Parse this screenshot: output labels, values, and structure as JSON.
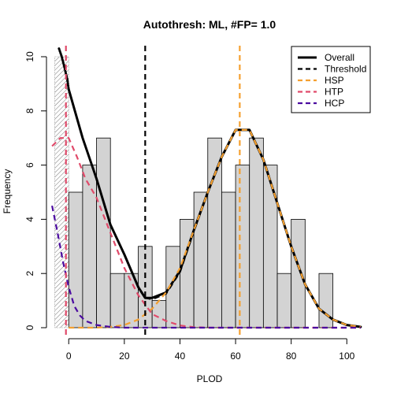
{
  "chart_data": {
    "type": "histogram",
    "title": "Autothresh: ML, #FP=  1.0",
    "xlabel": "PLOD",
    "ylabel": "Frequency",
    "xlim": [
      -8,
      107
    ],
    "ylim": [
      0,
      10.4
    ],
    "x_ticks": [
      0,
      20,
      40,
      60,
      80,
      100
    ],
    "y_ticks": [
      0,
      2,
      4,
      6,
      8,
      10
    ],
    "x_tick_labels": [
      "0",
      "20",
      "40",
      "60",
      "80",
      "100"
    ],
    "y_tick_labels": [
      "0",
      "2",
      "4",
      "6",
      "8",
      "10"
    ],
    "grid": false,
    "hatched_bin": {
      "x0": -5,
      "x1": 0,
      "height": 10
    },
    "bins": [
      {
        "x0": 0,
        "x1": 5,
        "count": 5
      },
      {
        "x0": 5,
        "x1": 10,
        "count": 6
      },
      {
        "x0": 10,
        "x1": 15,
        "count": 7
      },
      {
        "x0": 15,
        "x1": 20,
        "count": 2
      },
      {
        "x0": 20,
        "x1": 25,
        "count": 2
      },
      {
        "x0": 25,
        "x1": 30,
        "count": 3
      },
      {
        "x0": 30,
        "x1": 35,
        "count": 1
      },
      {
        "x0": 35,
        "x1": 40,
        "count": 3
      },
      {
        "x0": 40,
        "x1": 45,
        "count": 4
      },
      {
        "x0": 45,
        "x1": 50,
        "count": 5
      },
      {
        "x0": 50,
        "x1": 55,
        "count": 7
      },
      {
        "x0": 55,
        "x1": 60,
        "count": 5
      },
      {
        "x0": 60,
        "x1": 65,
        "count": 6
      },
      {
        "x0": 65,
        "x1": 70,
        "count": 7
      },
      {
        "x0": 70,
        "x1": 75,
        "count": 6
      },
      {
        "x0": 75,
        "x1": 80,
        "count": 2
      },
      {
        "x0": 80,
        "x1": 85,
        "count": 4
      },
      {
        "x0": 85,
        "x1": 90,
        "count": 0
      },
      {
        "x0": 90,
        "x1": 95,
        "count": 2
      }
    ],
    "vlines": [
      {
        "name": "Threshold",
        "x": 27.5,
        "color": "#000000"
      },
      {
        "name": "HSP",
        "x": 61.5,
        "color": "#f5a030"
      },
      {
        "name": "HTP",
        "x": -1,
        "color": "#e04a6a"
      }
    ],
    "series": [
      {
        "name": "Overall",
        "color": "#000000",
        "style": "solid",
        "points": [
          [
            0,
            8.8
          ],
          [
            5,
            7.0
          ],
          [
            10,
            5.5
          ],
          [
            15,
            3.8
          ],
          [
            20,
            2.7
          ],
          [
            25,
            1.5
          ],
          [
            27.5,
            1.1
          ],
          [
            30,
            1.1
          ],
          [
            35,
            1.3
          ],
          [
            40,
            2.1
          ],
          [
            45,
            3.6
          ],
          [
            50,
            5.0
          ],
          [
            55,
            6.3
          ],
          [
            60,
            7.3
          ],
          [
            65,
            7.3
          ],
          [
            70,
            6.2
          ],
          [
            75,
            4.6
          ],
          [
            80,
            3.0
          ],
          [
            85,
            1.6
          ],
          [
            90,
            0.7
          ],
          [
            95,
            0.3
          ],
          [
            100,
            0.1
          ],
          [
            105,
            0.03
          ]
        ]
      },
      {
        "name": "Threshold",
        "color": "#000000",
        "style": "dashed",
        "points": [
          [
            27.5,
            1.1
          ],
          [
            30,
            1.05
          ],
          [
            35,
            1.25
          ],
          [
            40,
            2.05
          ],
          [
            45,
            3.55
          ],
          [
            50,
            5.0
          ],
          [
            55,
            6.3
          ],
          [
            60,
            7.3
          ],
          [
            65,
            7.3
          ],
          [
            70,
            6.2
          ],
          [
            75,
            4.6
          ],
          [
            80,
            3.0
          ],
          [
            85,
            1.6
          ],
          [
            90,
            0.7
          ],
          [
            95,
            0.3
          ],
          [
            100,
            0.1
          ],
          [
            105,
            0.03
          ]
        ]
      },
      {
        "name": "HSP",
        "color": "#f5a030",
        "style": "dashed",
        "points": [
          [
            0,
            0.0
          ],
          [
            10,
            0.0
          ],
          [
            15,
            0.03
          ],
          [
            20,
            0.1
          ],
          [
            25,
            0.3
          ],
          [
            30,
            0.7
          ],
          [
            35,
            1.3
          ],
          [
            40,
            2.2
          ],
          [
            45,
            3.6
          ],
          [
            50,
            5.0
          ],
          [
            55,
            6.3
          ],
          [
            60,
            7.3
          ],
          [
            65,
            7.3
          ],
          [
            70,
            6.2
          ],
          [
            75,
            4.6
          ],
          [
            80,
            3.0
          ],
          [
            85,
            1.6
          ],
          [
            90,
            0.7
          ],
          [
            95,
            0.3
          ],
          [
            100,
            0.1
          ],
          [
            105,
            0.03
          ]
        ]
      },
      {
        "name": "HTP",
        "color": "#e04a6a",
        "style": "dashed",
        "points": [
          [
            -6,
            6.7
          ],
          [
            -3,
            7.0
          ],
          [
            0,
            7.0
          ],
          [
            3,
            6.3
          ],
          [
            6,
            5.5
          ],
          [
            10,
            4.8
          ],
          [
            15,
            3.5
          ],
          [
            20,
            2.2
          ],
          [
            25,
            1.2
          ],
          [
            30,
            0.5
          ],
          [
            35,
            0.25
          ],
          [
            40,
            0.08
          ],
          [
            45,
            0.02
          ],
          [
            50,
            0.0
          ],
          [
            60,
            0.0
          ],
          [
            100,
            0.0
          ],
          [
            105,
            0.0
          ]
        ]
      },
      {
        "name": "HCP",
        "color": "#4b0aa0",
        "style": "dashed",
        "points": [
          [
            -6,
            4.5
          ],
          [
            -4,
            3.5
          ],
          [
            -2,
            2.4
          ],
          [
            0,
            1.5
          ],
          [
            2,
            0.8
          ],
          [
            4,
            0.45
          ],
          [
            6,
            0.25
          ],
          [
            10,
            0.1
          ],
          [
            15,
            0.03
          ],
          [
            20,
            0.0
          ],
          [
            50,
            0.0
          ],
          [
            100,
            0.0
          ],
          [
            105,
            0.0
          ]
        ]
      },
      {
        "name": "",
        "color": "#000000",
        "style": "dotted",
        "points": [
          [
            -3.5,
            10.3
          ],
          [
            -2.5,
            10.0
          ],
          [
            -1.5,
            9.6
          ],
          [
            -0.5,
            9.15
          ],
          [
            0,
            8.8
          ]
        ]
      }
    ],
    "legend": {
      "position": "top-right",
      "entries": [
        {
          "label": "Overall",
          "color": "#000000",
          "style": "solid"
        },
        {
          "label": "Threshold",
          "color": "#000000",
          "style": "dashed"
        },
        {
          "label": "HSP",
          "color": "#f5a030",
          "style": "dashed"
        },
        {
          "label": "HTP",
          "color": "#e04a6a",
          "style": "dashed"
        },
        {
          "label": "HCP",
          "color": "#4b0aa0",
          "style": "dashed"
        }
      ]
    },
    "bar_fill": "#d3d3d3",
    "bar_stroke": "#000000"
  }
}
